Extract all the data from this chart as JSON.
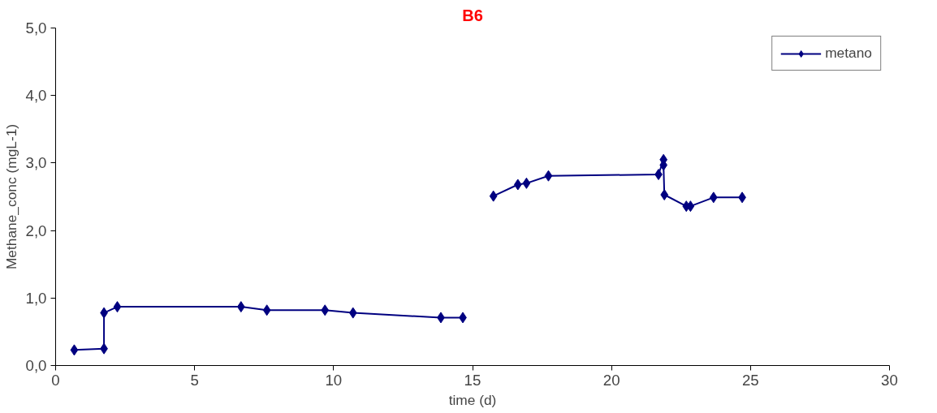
{
  "chart_data": {
    "type": "line",
    "title": "B6",
    "xlabel": "time (d)",
    "ylabel": "Methane_conc (mgL-1)",
    "xlim": [
      0,
      30
    ],
    "xticks": [
      0,
      5,
      10,
      15,
      20,
      25,
      30
    ],
    "ylim": [
      0,
      5
    ],
    "yticks": [
      {
        "value": 0,
        "label": "0,0"
      },
      {
        "value": 1,
        "label": "1,0"
      },
      {
        "value": 2,
        "label": "2,0"
      },
      {
        "value": 3,
        "label": "3,0"
      },
      {
        "value": 4,
        "label": "4,0"
      },
      {
        "value": 5,
        "label": "5,0"
      }
    ],
    "grid": false,
    "legend": "top right",
    "marker": "diamond",
    "line_style": "solid",
    "series": [
      {
        "name": "metano",
        "color": "#000080",
        "x": [
          0.67,
          1.74,
          1.74,
          2.22,
          6.67,
          7.6,
          9.69,
          10.7,
          13.86,
          14.65,
          15.2,
          15.75,
          16.63,
          16.94,
          17.73,
          21.69,
          21.87,
          21.87,
          21.9,
          22.69,
          22.84,
          23.67,
          24.7
        ],
        "values": [
          0.23,
          0.25,
          0.78,
          0.87,
          0.87,
          0.82,
          0.82,
          0.78,
          0.71,
          0.71,
          null,
          2.51,
          2.68,
          2.7,
          2.81,
          2.83,
          3.05,
          2.97,
          2.53,
          2.36,
          2.36,
          2.49,
          2.49
        ]
      }
    ]
  }
}
